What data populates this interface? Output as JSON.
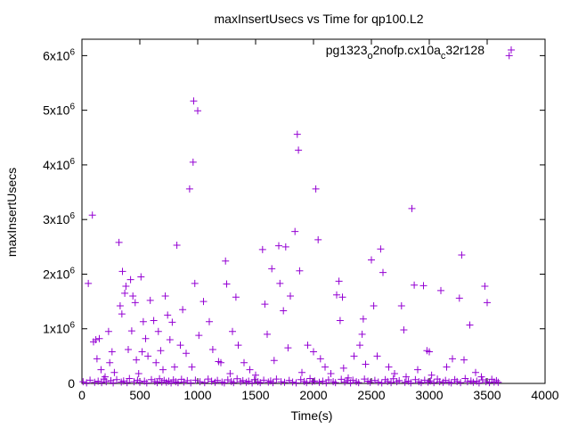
{
  "chart_data": {
    "type": "scatter",
    "title": "maxInsertUsecs vs Time for qp100.L2",
    "xlabel": "Time(s)",
    "ylabel": "maxInsertUsecs",
    "xlim": [
      0,
      4000
    ],
    "ylim": [
      0,
      6300000
    ],
    "x_ticks": [
      0,
      500,
      1000,
      1500,
      2000,
      2500,
      3000,
      3500,
      4000
    ],
    "x_tick_labels": [
      "0",
      "500",
      "1000",
      "1500",
      "2000",
      "2500",
      "3000",
      "3500",
      "4000"
    ],
    "y_ticks": [
      0,
      1000000,
      2000000,
      3000000,
      4000000,
      5000000,
      6000000
    ],
    "y_tick_labels": [
      {
        "mantissa": "0",
        "exp": ""
      },
      {
        "mantissa": "1x10",
        "exp": "6"
      },
      {
        "mantissa": "2x10",
        "exp": "6"
      },
      {
        "mantissa": "3x10",
        "exp": "6"
      },
      {
        "mantissa": "4x10",
        "exp": "6"
      },
      {
        "mantissa": "5x10",
        "exp": "6"
      },
      {
        "mantissa": "6x10",
        "exp": "6"
      }
    ],
    "grid": false,
    "legend_position": "top-right",
    "marker": "plus",
    "series": [
      {
        "name_parts": [
          {
            "text": "pg1323",
            "sub": false
          },
          {
            "text": "o",
            "sub": true
          },
          {
            "text": "2nofp.cx10a",
            "sub": false
          },
          {
            "text": "c",
            "sub": true
          },
          {
            "text": "32r128",
            "sub": false
          }
        ],
        "color": "#9400d3",
        "points": [
          [
            55,
            1830000
          ],
          [
            90,
            3080000
          ],
          [
            100,
            760000
          ],
          [
            120,
            800000
          ],
          [
            130,
            450000
          ],
          [
            150,
            820000
          ],
          [
            165,
            250000
          ],
          [
            200,
            120000
          ],
          [
            230,
            950000
          ],
          [
            240,
            380000
          ],
          [
            260,
            580000
          ],
          [
            280,
            200000
          ],
          [
            320,
            2580000
          ],
          [
            330,
            1420000
          ],
          [
            345,
            1270000
          ],
          [
            350,
            2050000
          ],
          [
            370,
            1650000
          ],
          [
            380,
            1780000
          ],
          [
            400,
            620000
          ],
          [
            420,
            1900000
          ],
          [
            430,
            960000
          ],
          [
            440,
            1600000
          ],
          [
            460,
            1480000
          ],
          [
            470,
            430000
          ],
          [
            490,
            180000
          ],
          [
            510,
            1950000
          ],
          [
            520,
            580000
          ],
          [
            530,
            1130000
          ],
          [
            550,
            820000
          ],
          [
            570,
            500000
          ],
          [
            590,
            1520000
          ],
          [
            620,
            1150000
          ],
          [
            640,
            380000
          ],
          [
            660,
            950000
          ],
          [
            680,
            600000
          ],
          [
            700,
            250000
          ],
          [
            720,
            1600000
          ],
          [
            740,
            1250000
          ],
          [
            760,
            800000
          ],
          [
            780,
            1120000
          ],
          [
            800,
            300000
          ],
          [
            820,
            2530000
          ],
          [
            850,
            700000
          ],
          [
            870,
            1350000
          ],
          [
            900,
            550000
          ],
          [
            930,
            3560000
          ],
          [
            950,
            300000
          ],
          [
            960,
            4050000
          ],
          [
            965,
            5170000
          ],
          [
            975,
            1830000
          ],
          [
            1000,
            4990000
          ],
          [
            1010,
            880000
          ],
          [
            1050,
            1500000
          ],
          [
            1100,
            1130000
          ],
          [
            1130,
            620000
          ],
          [
            1180,
            400000
          ],
          [
            1200,
            380000
          ],
          [
            1240,
            2240000
          ],
          [
            1250,
            1820000
          ],
          [
            1280,
            180000
          ],
          [
            1300,
            950000
          ],
          [
            1330,
            1580000
          ],
          [
            1350,
            700000
          ],
          [
            1400,
            380000
          ],
          [
            1450,
            250000
          ],
          [
            1500,
            150000
          ],
          [
            1560,
            2450000
          ],
          [
            1580,
            1450000
          ],
          [
            1600,
            900000
          ],
          [
            1640,
            2100000
          ],
          [
            1660,
            420000
          ],
          [
            1700,
            2520000
          ],
          [
            1710,
            1830000
          ],
          [
            1740,
            1330000
          ],
          [
            1760,
            2500000
          ],
          [
            1780,
            650000
          ],
          [
            1800,
            1600000
          ],
          [
            1840,
            2780000
          ],
          [
            1860,
            4560000
          ],
          [
            1870,
            4270000
          ],
          [
            1880,
            2060000
          ],
          [
            1900,
            200000
          ],
          [
            1950,
            700000
          ],
          [
            2000,
            580000
          ],
          [
            2020,
            3560000
          ],
          [
            2040,
            2630000
          ],
          [
            2060,
            450000
          ],
          [
            2100,
            300000
          ],
          [
            2150,
            180000
          ],
          [
            2200,
            1620000
          ],
          [
            2220,
            1870000
          ],
          [
            2230,
            1150000
          ],
          [
            2250,
            1580000
          ],
          [
            2260,
            280000
          ],
          [
            2300,
            100000
          ],
          [
            2350,
            500000
          ],
          [
            2400,
            700000
          ],
          [
            2420,
            900000
          ],
          [
            2430,
            1180000
          ],
          [
            2450,
            350000
          ],
          [
            2500,
            2260000
          ],
          [
            2520,
            1420000
          ],
          [
            2550,
            500000
          ],
          [
            2580,
            2460000
          ],
          [
            2600,
            2030000
          ],
          [
            2650,
            300000
          ],
          [
            2700,
            180000
          ],
          [
            2760,
            1420000
          ],
          [
            2780,
            980000
          ],
          [
            2800,
            120000
          ],
          [
            2850,
            3200000
          ],
          [
            2870,
            1800000
          ],
          [
            2900,
            250000
          ],
          [
            2950,
            1790000
          ],
          [
            2980,
            600000
          ],
          [
            3000,
            580000
          ],
          [
            3020,
            150000
          ],
          [
            3100,
            1700000
          ],
          [
            3150,
            300000
          ],
          [
            3200,
            450000
          ],
          [
            3260,
            1560000
          ],
          [
            3280,
            2350000
          ],
          [
            3300,
            430000
          ],
          [
            3350,
            1070000
          ],
          [
            3400,
            200000
          ],
          [
            3450,
            120000
          ],
          [
            3480,
            1780000
          ],
          [
            3500,
            1480000
          ],
          [
            3690,
            6000000
          ],
          [
            10,
            30000
          ],
          [
            40,
            10000
          ],
          [
            70,
            60000
          ],
          [
            110,
            20000
          ],
          [
            140,
            40000
          ],
          [
            170,
            15000
          ],
          [
            190,
            80000
          ],
          [
            210,
            30000
          ],
          [
            250,
            50000
          ],
          [
            270,
            10000
          ],
          [
            300,
            70000
          ],
          [
            340,
            25000
          ],
          [
            360,
            45000
          ],
          [
            390,
            15000
          ],
          [
            410,
            90000
          ],
          [
            450,
            30000
          ],
          [
            480,
            60000
          ],
          [
            500,
            20000
          ],
          [
            540,
            40000
          ],
          [
            560,
            10000
          ],
          [
            600,
            70000
          ],
          [
            630,
            35000
          ],
          [
            650,
            15000
          ],
          [
            670,
            85000
          ],
          [
            690,
            25000
          ],
          [
            710,
            55000
          ],
          [
            730,
            20000
          ],
          [
            750,
            40000
          ],
          [
            770,
            10000
          ],
          [
            790,
            65000
          ],
          [
            810,
            30000
          ],
          [
            830,
            15000
          ],
          [
            860,
            75000
          ],
          [
            880,
            25000
          ],
          [
            910,
            50000
          ],
          [
            940,
            10000
          ],
          [
            980,
            60000
          ],
          [
            1020,
            30000
          ],
          [
            1060,
            15000
          ],
          [
            1090,
            80000
          ],
          [
            1120,
            40000
          ],
          [
            1150,
            20000
          ],
          [
            1170,
            55000
          ],
          [
            1210,
            25000
          ],
          [
            1230,
            10000
          ],
          [
            1260,
            65000
          ],
          [
            1290,
            35000
          ],
          [
            1310,
            15000
          ],
          [
            1340,
            85000
          ],
          [
            1370,
            30000
          ],
          [
            1390,
            50000
          ],
          [
            1420,
            20000
          ],
          [
            1440,
            40000
          ],
          [
            1470,
            10000
          ],
          [
            1490,
            70000
          ],
          [
            1520,
            30000
          ],
          [
            1540,
            15000
          ],
          [
            1570,
            60000
          ],
          [
            1610,
            25000
          ],
          [
            1630,
            45000
          ],
          [
            1650,
            15000
          ],
          [
            1680,
            80000
          ],
          [
            1720,
            30000
          ],
          [
            1750,
            20000
          ],
          [
            1790,
            55000
          ],
          [
            1820,
            25000
          ],
          [
            1850,
            10000
          ],
          [
            1890,
            70000
          ],
          [
            1920,
            35000
          ],
          [
            1940,
            15000
          ],
          [
            1970,
            90000
          ],
          [
            1990,
            30000
          ],
          [
            2010,
            45000
          ],
          [
            2050,
            20000
          ],
          [
            2080,
            40000
          ],
          [
            2110,
            10000
          ],
          [
            2130,
            65000
          ],
          [
            2170,
            30000
          ],
          [
            2190,
            15000
          ],
          [
            2240,
            75000
          ],
          [
            2270,
            25000
          ],
          [
            2290,
            50000
          ],
          [
            2320,
            10000
          ],
          [
            2340,
            60000
          ],
          [
            2370,
            30000
          ],
          [
            2390,
            15000
          ],
          [
            2440,
            80000
          ],
          [
            2470,
            40000
          ],
          [
            2490,
            20000
          ],
          [
            2530,
            55000
          ],
          [
            2560,
            25000
          ],
          [
            2590,
            10000
          ],
          [
            2620,
            70000
          ],
          [
            2640,
            35000
          ],
          [
            2670,
            15000
          ],
          [
            2690,
            85000
          ],
          [
            2720,
            30000
          ],
          [
            2740,
            50000
          ],
          [
            2790,
            20000
          ],
          [
            2820,
            40000
          ],
          [
            2840,
            10000
          ],
          [
            2880,
            70000
          ],
          [
            2910,
            30000
          ],
          [
            2930,
            15000
          ],
          [
            2960,
            60000
          ],
          [
            2990,
            25000
          ],
          [
            3010,
            45000
          ],
          [
            3040,
            15000
          ],
          [
            3070,
            80000
          ],
          [
            3090,
            30000
          ],
          [
            3120,
            20000
          ],
          [
            3140,
            55000
          ],
          [
            3170,
            25000
          ],
          [
            3190,
            10000
          ],
          [
            3220,
            70000
          ],
          [
            3240,
            35000
          ],
          [
            3270,
            15000
          ],
          [
            3310,
            90000
          ],
          [
            3330,
            30000
          ],
          [
            3360,
            45000
          ],
          [
            3380,
            20000
          ],
          [
            3410,
            40000
          ],
          [
            3430,
            10000
          ],
          [
            3460,
            65000
          ],
          [
            3490,
            30000
          ],
          [
            3520,
            15000
          ],
          [
            3540,
            75000
          ],
          [
            3560,
            25000
          ],
          [
            3580,
            50000
          ],
          [
            3595,
            20000
          ]
        ]
      }
    ]
  }
}
